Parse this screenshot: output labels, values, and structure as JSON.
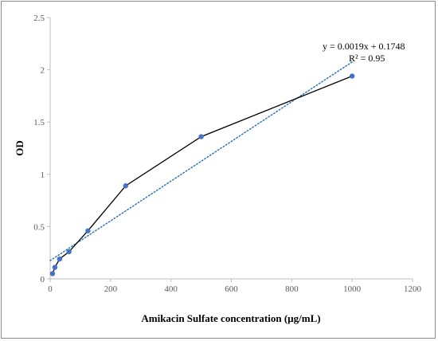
{
  "chart_data": {
    "type": "scatter",
    "title": "",
    "xlabel": "Amikacin Sulfate concentration (µg/mL)",
    "ylabel": "OD",
    "xlim": [
      0,
      1200
    ],
    "ylim": [
      0,
      2.5
    ],
    "x_ticks": [
      0,
      200,
      400,
      600,
      800,
      1000,
      1200
    ],
    "y_ticks": [
      0,
      0.5,
      1,
      1.5,
      2,
      2.5
    ],
    "x_tick_labels": [
      "0",
      "200",
      "400",
      "600",
      "800",
      "1000",
      "1200"
    ],
    "y_tick_labels": [
      "0",
      "0.5",
      "1",
      "1.5",
      "2",
      "2.5"
    ],
    "grid": false,
    "legend": "none",
    "series": [
      {
        "x": [
          7.8,
          15.6,
          31.25,
          62.5,
          125,
          250,
          500,
          1000
        ],
        "y": [
          0.05,
          0.11,
          0.19,
          0.26,
          0.46,
          0.89,
          1.36,
          1.94
        ],
        "marker_color": "#4472C4",
        "line_color": "#000000"
      }
    ],
    "trendline": {
      "type": "linear",
      "slope": 0.0019,
      "intercept": 0.1748,
      "x_range": [
        0,
        1000
      ],
      "color": "#2E75B6",
      "style": "dotted",
      "equation_label": "y = 0.0019x + 0.1748",
      "r2_label": "R² = 0.95"
    }
  }
}
